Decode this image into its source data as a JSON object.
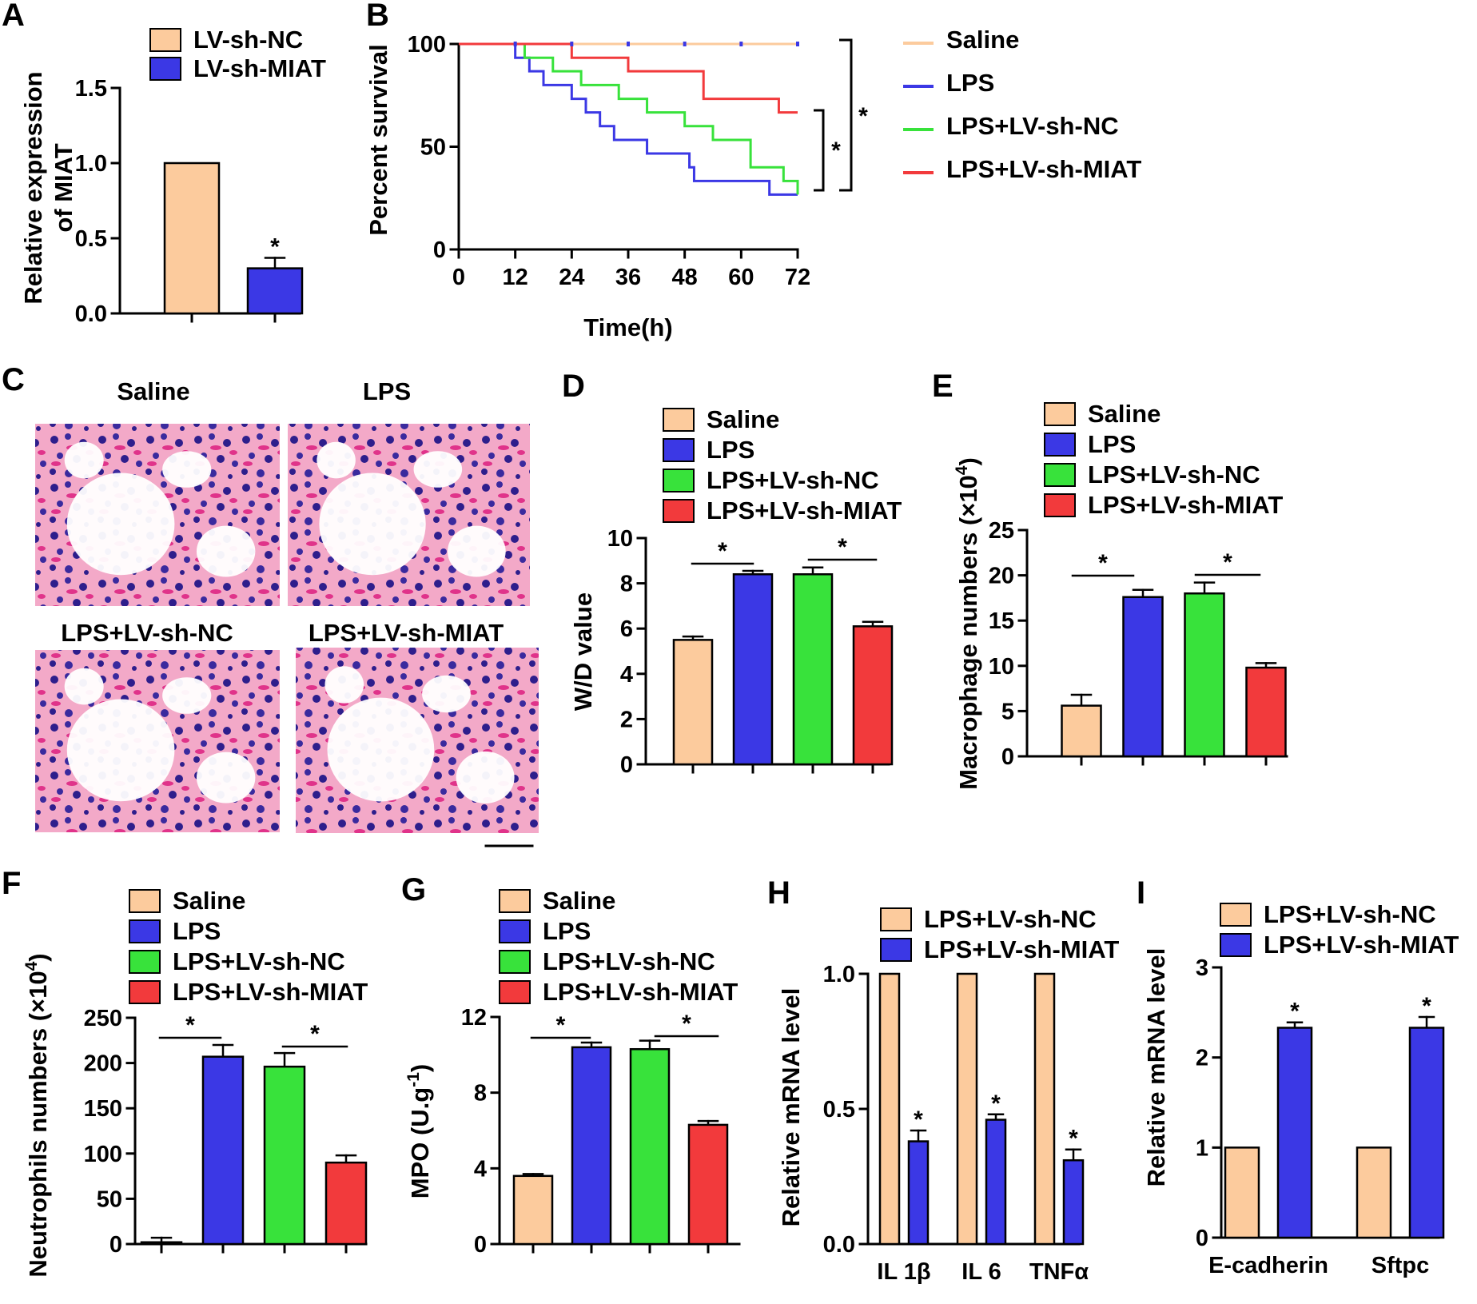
{
  "colors": {
    "saline": "#FCCB9D",
    "lps": "#3B38E5",
    "lps_nc": "#38E23B",
    "lps_miat": "#F23A3C",
    "tissue_base": "#F3A9C8",
    "tissue_pink": "#E0338A",
    "tissue_nuclei": "#2E1E8C"
  },
  "panels": {
    "A": {
      "letter": "A",
      "chart_data": {
        "type": "bar",
        "categories": [
          "LV-sh-NC",
          "LV-sh-MIAT"
        ],
        "values": [
          1.0,
          0.3
        ],
        "errors": [
          0,
          0.07
        ],
        "colors": [
          "#FCCB9D",
          "#3B38E5"
        ],
        "ylabel_lines": [
          "Relative expression",
          "of MIAT"
        ],
        "ylim": [
          0,
          1.5
        ],
        "yticks": [
          "0.0",
          "0.5",
          "1.0",
          "1.5"
        ],
        "legend": [
          "LV-sh-NC",
          "LV-sh-MIAT"
        ],
        "legend_position": "top",
        "significance": [
          "",
          "*"
        ]
      }
    },
    "B": {
      "letter": "B",
      "chart_data": {
        "type": "line",
        "title": "",
        "xlabel": "Time(h)",
        "ylabel": "Percent survival",
        "xlim": [
          0,
          72
        ],
        "ylim": [
          0,
          100
        ],
        "xticks": [
          "0",
          "12",
          "24",
          "36",
          "48",
          "60",
          "72"
        ],
        "yticks": [
          "0",
          "50",
          "100"
        ],
        "step": true,
        "series": [
          {
            "name": "Saline",
            "color": "#FCCB9D",
            "x": [
              0,
              72
            ],
            "y": [
              100,
              100
            ]
          },
          {
            "name": "LPS",
            "color": "#3B38E5",
            "x": [
              0,
              10,
              12,
              15,
              18,
              24,
              27,
              30,
              33,
              36,
              40,
              49,
              50,
              66,
              72
            ],
            "y": [
              100,
              100,
              93.3,
              86.7,
              80,
              73.3,
              66.7,
              60,
              53.3,
              53.3,
              46.7,
              40,
              33.3,
              26.7,
              26.7
            ]
          },
          {
            "name": "LPS+LV-sh-NC",
            "color": "#38E23B",
            "x": [
              0,
              11,
              14,
              20,
              26,
              34,
              40,
              48,
              54,
              62,
              69,
              72
            ],
            "y": [
              100,
              100,
              93.3,
              86.7,
              80,
              73.3,
              66.7,
              60,
              53.3,
              40,
              33.3,
              26.7
            ]
          },
          {
            "name": "LPS+LV-sh-MIAT",
            "color": "#F23A3C",
            "x": [
              0,
              24,
              36,
              52,
              68,
              72
            ],
            "y": [
              100,
              93.3,
              86.7,
              73.3,
              66.7,
              66.7
            ]
          }
        ],
        "legend_position": "right",
        "significance": [
          "*",
          "*"
        ]
      }
    },
    "C": {
      "letter": "C",
      "labels": [
        "Saline",
        "LPS",
        "LPS+LV-sh-NC",
        "LPS+LV-sh-MIAT"
      ]
    },
    "D": {
      "letter": "D",
      "chart_data": {
        "type": "bar",
        "categories": [
          "Saline",
          "LPS",
          "LPS+LV-sh-NC",
          "LPS+LV-sh-MIAT"
        ],
        "values": [
          5.5,
          8.4,
          8.4,
          6.1
        ],
        "errors": [
          0.15,
          0.15,
          0.3,
          0.2
        ],
        "colors": [
          "#FCCB9D",
          "#3B38E5",
          "#38E23B",
          "#F23A3C"
        ],
        "ylabel": "W/D value",
        "ylim": [
          0,
          10
        ],
        "yticks": [
          "0",
          "2",
          "4",
          "6",
          "8",
          "10"
        ],
        "legend": [
          "Saline",
          "LPS",
          "LPS+LV-sh-NC",
          "LPS+LV-sh-MIAT"
        ],
        "legend_position": "top",
        "significance": [
          "*",
          "*"
        ]
      }
    },
    "E": {
      "letter": "E",
      "chart_data": {
        "type": "bar",
        "categories": [
          "Saline",
          "LPS",
          "LPS+LV-sh-NC",
          "LPS+LV-sh-MIAT"
        ],
        "values": [
          5.6,
          17.6,
          18.0,
          9.8
        ],
        "errors": [
          1.2,
          0.8,
          1.2,
          0.5
        ],
        "colors": [
          "#FCCB9D",
          "#3B38E5",
          "#38E23B",
          "#F23A3C"
        ],
        "ylabel_main": "Macrophage numbers (×10",
        "ylabel_sup": "4",
        "ylabel_end": ")",
        "ylim": [
          0,
          25
        ],
        "yticks": [
          "0",
          "5",
          "10",
          "15",
          "20",
          "25"
        ],
        "legend": [
          "Saline",
          "LPS",
          "LPS+LV-sh-NC",
          "LPS+LV-sh-MIAT"
        ],
        "legend_position": "top",
        "significance": [
          "*",
          "*"
        ]
      }
    },
    "F": {
      "letter": "F",
      "chart_data": {
        "type": "bar",
        "categories": [
          "Saline",
          "LPS",
          "LPS+LV-sh-NC",
          "LPS+LV-sh-MIAT"
        ],
        "values": [
          2,
          207,
          196,
          90
        ],
        "errors": [
          5,
          13,
          15,
          8
        ],
        "colors": [
          "#FCCB9D",
          "#3B38E5",
          "#38E23B",
          "#F23A3C"
        ],
        "ylabel_main": "Neutrophils numbers (×10",
        "ylabel_sup": "4",
        "ylabel_end": ")",
        "ylim": [
          0,
          250
        ],
        "yticks": [
          "0",
          "50",
          "100",
          "150",
          "200",
          "250"
        ],
        "legend": [
          "Saline",
          "LPS",
          "LPS+LV-sh-NC",
          "LPS+LV-sh-MIAT"
        ],
        "legend_position": "top",
        "significance": [
          "*",
          "*"
        ]
      }
    },
    "G": {
      "letter": "G",
      "chart_data": {
        "type": "bar",
        "categories": [
          "Saline",
          "LPS",
          "LPS+LV-sh-NC",
          "LPS+LV-sh-MIAT"
        ],
        "values": [
          3.6,
          10.4,
          10.3,
          6.3
        ],
        "errors": [
          0.1,
          0.25,
          0.45,
          0.2
        ],
        "colors": [
          "#FCCB9D",
          "#3B38E5",
          "#38E23B",
          "#F23A3C"
        ],
        "ylabel_main": "MPO (U.g",
        "ylabel_sup": "-1",
        "ylabel_end": ")",
        "ylim": [
          0,
          12
        ],
        "yticks": [
          "0",
          "4",
          "8",
          "12"
        ],
        "legend": [
          "Saline",
          "LPS",
          "LPS+LV-sh-NC",
          "LPS+LV-sh-MIAT"
        ],
        "legend_position": "top",
        "significance": [
          "*",
          "*"
        ]
      }
    },
    "H": {
      "letter": "H",
      "chart_data": {
        "type": "bar",
        "categories": [
          "IL 1β",
          "IL 6",
          "TNFα"
        ],
        "series": [
          {
            "name": "LPS+LV-sh-NC",
            "color": "#FCCB9D",
            "values": [
              1.0,
              1.0,
              1.0
            ],
            "errors": [
              0,
              0,
              0
            ]
          },
          {
            "name": "LPS+LV-sh-MIAT",
            "color": "#3B38E5",
            "values": [
              0.38,
              0.46,
              0.31
            ],
            "errors": [
              0.04,
              0.02,
              0.04
            ]
          }
        ],
        "ylabel": "Relative mRNA level",
        "ylim": [
          0,
          1.0
        ],
        "yticks": [
          "0.0",
          "0.5",
          "1.0"
        ],
        "legend_position": "top",
        "significance": [
          "*",
          "*",
          "*"
        ]
      }
    },
    "I": {
      "letter": "I",
      "chart_data": {
        "type": "bar",
        "categories": [
          "E-cadherin",
          "Sftpc"
        ],
        "series": [
          {
            "name": "LPS+LV-sh-NC",
            "color": "#FCCB9D",
            "values": [
              1.0,
              1.0
            ],
            "errors": [
              0,
              0
            ]
          },
          {
            "name": "LPS+LV-sh-MIAT",
            "color": "#3B38E5",
            "values": [
              2.33,
              2.33
            ],
            "errors": [
              0.06,
              0.12
            ]
          }
        ],
        "ylabel": "Relative mRNA level",
        "ylim": [
          0,
          3
        ],
        "yticks": [
          "0",
          "1",
          "2",
          "3"
        ],
        "legend_position": "top",
        "significance": [
          "*",
          "*"
        ]
      }
    }
  }
}
